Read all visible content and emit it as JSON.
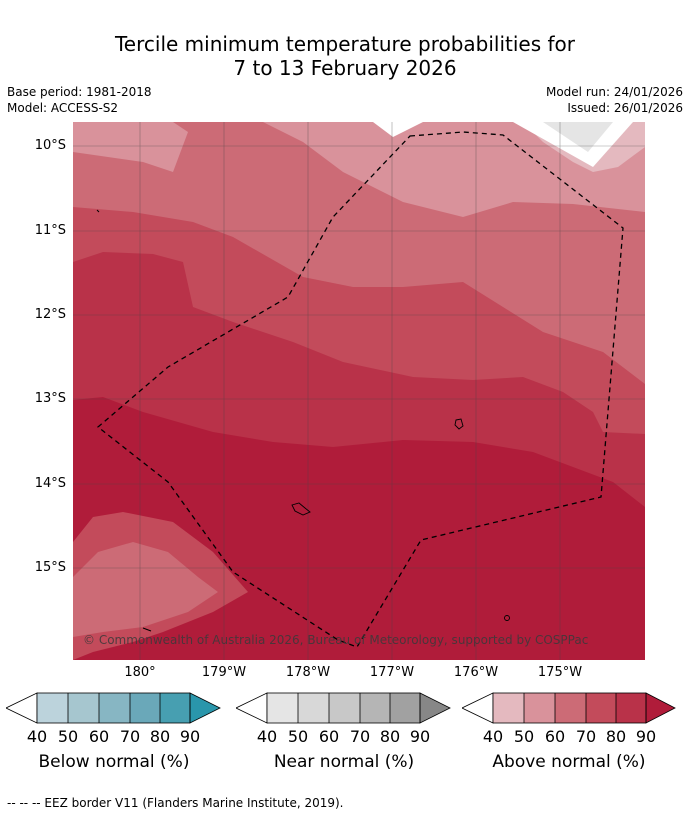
{
  "title": {
    "line1": "Tercile minimum temperature probabilities for",
    "line2": "7 to 13 February 2026"
  },
  "meta": {
    "base_period": "Base period: 1981-2018",
    "model": "Model: ACCESS-S2",
    "model_run": "Model run: 24/01/2026",
    "issued": "Issued: 26/01/2026"
  },
  "map": {
    "copyright": "© Commonwealth of Australia 2026, Bureau of Meteorology, supported by COSPPac",
    "lat_labels": [
      "10°S",
      "11°S",
      "12°S",
      "13°S",
      "14°S",
      "15°S"
    ],
    "lon_labels": [
      "180°",
      "179°W",
      "178°W",
      "177°W",
      "176°W",
      "175°W"
    ],
    "colors": {
      "above_40": "#e4b9bf",
      "above_50": "#d9929b",
      "above_60": "#cc6b76",
      "above_70": "#c34b5b",
      "above_80": "#b93249",
      "above_90": "#b01c3a"
    }
  },
  "legend": {
    "below": {
      "title": "Below normal (%)",
      "ticks": [
        "40",
        "50",
        "60",
        "70",
        "80",
        "90"
      ],
      "colors": [
        "#bcd3dc",
        "#a6c6cf",
        "#87b6c3",
        "#6aa8b9",
        "#479fb1",
        "#2a96ab"
      ]
    },
    "near": {
      "title": "Near normal (%)",
      "ticks": [
        "40",
        "50",
        "60",
        "70",
        "80",
        "90"
      ],
      "colors": [
        "#e5e5e5",
        "#d8d8d8",
        "#c8c8c8",
        "#b5b5b5",
        "#a1a1a1",
        "#878787"
      ]
    },
    "above": {
      "title": "Above normal (%)",
      "ticks": [
        "40",
        "50",
        "60",
        "70",
        "80",
        "90"
      ],
      "colors": [
        "#e4b9bf",
        "#d9929b",
        "#cc6b76",
        "#c34b5b",
        "#b93249",
        "#b01c3a"
      ]
    }
  },
  "footer": "--  --  -- EEZ border V11 (Flanders Marine Institute, 2019)."
}
